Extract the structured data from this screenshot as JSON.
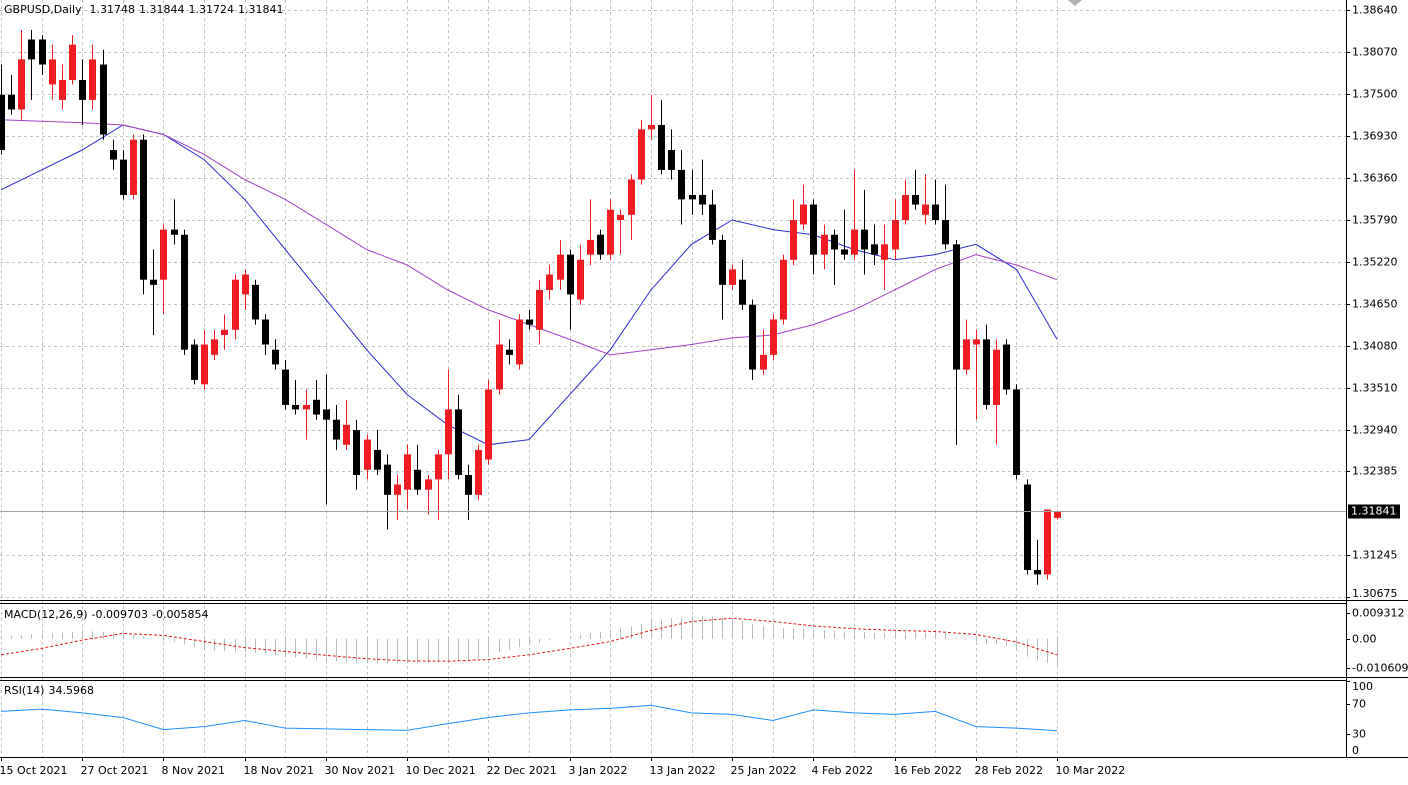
{
  "chart_data": [
    {
      "type": "candlestick",
      "header": "GBPUSD,Daily",
      "categories": [
        "15 Oct 2021",
        null,
        null,
        null,
        null,
        null,
        null,
        null,
        "27 Oct 2021",
        null,
        null,
        null,
        null,
        null,
        null,
        null,
        "8 Nov 2021",
        null,
        null,
        null,
        null,
        null,
        null,
        null,
        "18 Nov 2021",
        null,
        null,
        null,
        null,
        null,
        null,
        null,
        "30 Nov 2021",
        null,
        null,
        null,
        null,
        null,
        null,
        null,
        "10 Dec 2021",
        null,
        null,
        null,
        null,
        null,
        null,
        null,
        "22 Dec 2021",
        null,
        null,
        null,
        null,
        null,
        null,
        null,
        "3 Jan 2022",
        null,
        null,
        null,
        null,
        null,
        null,
        null,
        "13 Jan 2022",
        null,
        null,
        null,
        null,
        null,
        null,
        null,
        "25 Jan 2022",
        null,
        null,
        null,
        null,
        null,
        null,
        null,
        "4 Feb 2022",
        null,
        null,
        null,
        null,
        null,
        null,
        null,
        "16 Feb 2022",
        null,
        null,
        null,
        null,
        null,
        null,
        null,
        "28 Feb 2022",
        null,
        null,
        null,
        null,
        null,
        null,
        null,
        "10 Mar 2022"
      ],
      "open": [
        1.3749,
        1.3749,
        1.3729,
        1.3824,
        1.3824,
        1.3763,
        1.3742,
        1.3769,
        1.3769,
        1.3742,
        1.379,
        1.3674,
        1.3661,
        1.3613,
        1.3688,
        1.3498,
        1.3498,
        1.3566,
        1.3559,
        1.341,
        1.3356,
        1.3396,
        1.3423,
        1.343,
        1.3478,
        1.3491,
        1.3444,
        1.3403,
        1.3376,
        1.3328,
        1.3322,
        1.3335,
        1.3322,
        1.3308,
        1.3274,
        1.3294,
        1.324,
        1.3267,
        1.3247,
        1.3206,
        1.3213,
        1.324,
        1.3213,
        1.3227,
        1.3261,
        1.3322,
        1.3233,
        1.3206,
        1.3254,
        1.3349,
        1.3403,
        1.3383,
        1.3444,
        1.343,
        1.3484,
        1.3498,
        1.3532,
        1.3471,
        1.3532,
        1.3559,
        1.3532,
        1.3579,
        1.3586,
        1.3634,
        1.3702,
        1.3708,
        1.3674,
        1.3647,
        1.3613,
        1.3613,
        1.36,
        1.3552,
        1.3491,
        1.3498,
        1.3464,
        1.3376,
        1.3396,
        1.3444,
        1.3525,
        1.3573,
        1.36,
        1.3532,
        1.3559,
        1.3539,
        1.3532,
        1.3566,
        1.3546,
        1.3525,
        1.3539,
        1.3579,
        1.3613,
        1.3586,
        1.36,
        1.3579,
        1.3546,
        1.3376,
        1.341,
        1.3417,
        1.3328,
        1.341,
        1.3349,
        1.322,
        1.3104,
        1.3098,
        1.31748
      ],
      "high": [
        1.379,
        1.3776,
        1.3837,
        1.3837,
        1.383,
        1.3817,
        1.379,
        1.383,
        1.3797,
        1.3817,
        1.381,
        1.3688,
        1.3674,
        1.3695,
        1.3695,
        1.3539,
        1.3573,
        1.3607,
        1.3566,
        1.3417,
        1.343,
        1.343,
        1.3451,
        1.3505,
        1.3512,
        1.3498,
        1.3451,
        1.3417,
        1.3389,
        1.3362,
        1.3349,
        1.3362,
        1.3369,
        1.3328,
        1.3335,
        1.3308,
        1.3288,
        1.3294,
        1.3261,
        1.3233,
        1.3274,
        1.3274,
        1.3233,
        1.3267,
        1.3376,
        1.3342,
        1.3247,
        1.3274,
        1.3362,
        1.3444,
        1.3417,
        1.3451,
        1.3457,
        1.3498,
        1.3518,
        1.3552,
        1.3539,
        1.3546,
        1.3607,
        1.3566,
        1.3607,
        1.3593,
        1.3641,
        1.3715,
        1.3749,
        1.3742,
        1.3702,
        1.3674,
        1.3647,
        1.3661,
        1.362,
        1.3559,
        1.3518,
        1.3525,
        1.3471,
        1.343,
        1.3451,
        1.3532,
        1.3607,
        1.3627,
        1.3607,
        1.3573,
        1.3566,
        1.3593,
        1.3647,
        1.362,
        1.3573,
        1.3573,
        1.3607,
        1.3634,
        1.3647,
        1.3641,
        1.3634,
        1.3627,
        1.3552,
        1.3444,
        1.343,
        1.3437,
        1.3417,
        1.3417,
        1.3356,
        1.3227,
        1.3145,
        1.3186,
        1.31844
      ],
      "low": [
        1.3668,
        1.3722,
        1.3715,
        1.3742,
        1.3776,
        1.3742,
        1.3729,
        1.3763,
        1.3708,
        1.3729,
        1.3688,
        1.3647,
        1.3607,
        1.3607,
        1.3478,
        1.3423,
        1.3451,
        1.3546,
        1.3396,
        1.3356,
        1.3349,
        1.3389,
        1.3403,
        1.3417,
        1.3457,
        1.3437,
        1.3396,
        1.3376,
        1.3322,
        1.3315,
        1.3281,
        1.3308,
        1.3193,
        1.3267,
        1.3267,
        1.3213,
        1.3227,
        1.3233,
        1.3159,
        1.3172,
        1.3186,
        1.3206,
        1.3179,
        1.3172,
        1.3227,
        1.3227,
        1.3172,
        1.3199,
        1.3247,
        1.3342,
        1.3383,
        1.3376,
        1.343,
        1.341,
        1.3471,
        1.3484,
        1.343,
        1.3464,
        1.3518,
        1.3525,
        1.3525,
        1.3532,
        1.3552,
        1.3627,
        1.3688,
        1.3641,
        1.3634,
        1.3573,
        1.3586,
        1.3586,
        1.3546,
        1.3444,
        1.3484,
        1.3457,
        1.3362,
        1.3369,
        1.3389,
        1.3437,
        1.3518,
        1.3566,
        1.3505,
        1.3512,
        1.3491,
        1.3525,
        1.3525,
        1.3505,
        1.3518,
        1.3484,
        1.3525,
        1.3573,
        1.3593,
        1.3573,
        1.3573,
        1.3539,
        1.3274,
        1.3369,
        1.3308,
        1.3322,
        1.3274,
        1.3342,
        1.3227,
        1.3098,
        1.3084,
        1.3091,
        1.31724
      ],
      "close": [
        1.3674,
        1.3729,
        1.3797,
        1.3797,
        1.379,
        1.3797,
        1.3769,
        1.3817,
        1.3742,
        1.3797,
        1.3695,
        1.3661,
        1.3613,
        1.3688,
        1.3498,
        1.3491,
        1.3566,
        1.3559,
        1.3403,
        1.3362,
        1.341,
        1.3417,
        1.343,
        1.3498,
        1.3505,
        1.3444,
        1.341,
        1.3383,
        1.3328,
        1.3322,
        1.3328,
        1.3315,
        1.3308,
        1.3281,
        1.3301,
        1.3233,
        1.3281,
        1.324,
        1.3206,
        1.322,
        1.3261,
        1.3213,
        1.3227,
        1.3261,
        1.3322,
        1.3233,
        1.3206,
        1.3267,
        1.3349,
        1.341,
        1.3396,
        1.3444,
        1.3437,
        1.3484,
        1.3505,
        1.3532,
        1.3478,
        1.3525,
        1.3552,
        1.3532,
        1.3593,
        1.3586,
        1.3634,
        1.3702,
        1.3708,
        1.3647,
        1.3647,
        1.3607,
        1.3607,
        1.36,
        1.3552,
        1.3491,
        1.3512,
        1.3464,
        1.3376,
        1.3396,
        1.3444,
        1.3525,
        1.3579,
        1.36,
        1.3532,
        1.3559,
        1.3539,
        1.3532,
        1.3566,
        1.3539,
        1.3532,
        1.3546,
        1.3579,
        1.3613,
        1.36,
        1.36,
        1.3579,
        1.3546,
        1.3376,
        1.3417,
        1.3417,
        1.3328,
        1.3403,
        1.3349,
        1.3233,
        1.3104,
        1.3098,
        1.3186,
        1.31841
      ],
      "up_color": "#f01c24",
      "down_color": "#000000",
      "lines": [
        {
          "color": "#2b2bd0",
          "x": [
            0,
            4,
            8,
            12,
            16,
            20,
            24,
            28,
            32,
            36,
            40,
            44,
            48,
            52,
            56,
            60,
            64,
            68,
            72,
            76,
            80,
            84,
            88,
            92,
            96,
            100,
            104
          ],
          "values": [
            1.362,
            1.3647,
            1.3674,
            1.3708,
            1.3695,
            1.3661,
            1.3607,
            1.3539,
            1.3471,
            1.3403,
            1.3342,
            1.3301,
            1.3274,
            1.3281,
            1.3342,
            1.3403,
            1.3484,
            1.3546,
            1.3579,
            1.3566,
            1.3559,
            1.3539,
            1.3525,
            1.3532,
            1.3546,
            1.3512,
            1.3417
          ]
        },
        {
          "color": "#a043c8",
          "x": [
            0,
            4,
            8,
            12,
            16,
            20,
            24,
            28,
            32,
            36,
            40,
            44,
            48,
            52,
            56,
            60,
            64,
            68,
            72,
            76,
            80,
            84,
            88,
            92,
            96,
            100,
            104
          ],
          "values": [
            1.3715,
            1.3713,
            1.3711,
            1.3708,
            1.3695,
            1.3668,
            1.3634,
            1.3607,
            1.3573,
            1.3539,
            1.3518,
            1.3484,
            1.3457,
            1.3437,
            1.3417,
            1.3396,
            1.3403,
            1.341,
            1.3419,
            1.3423,
            1.3437,
            1.3457,
            1.3484,
            1.3512,
            1.3532,
            1.3518,
            1.3498
          ]
        }
      ],
      "ylim": [
        1.30633,
        1.38776
      ],
      "yticks": [
        {
          "value": 1.3864,
          "label": "1.38640"
        },
        {
          "value": 1.3807,
          "label": "1.38070"
        },
        {
          "value": 1.375,
          "label": "1.37500"
        },
        {
          "value": 1.3693,
          "label": "1.36930"
        },
        {
          "value": 1.3636,
          "label": "1.36360"
        },
        {
          "value": 1.3579,
          "label": "1.35790"
        },
        {
          "value": 1.3522,
          "label": "1.35220"
        },
        {
          "value": 1.3465,
          "label": "1.34650"
        },
        {
          "value": 1.3408,
          "label": "1.34080"
        },
        {
          "value": 1.3351,
          "label": "1.33510"
        },
        {
          "value": 1.3294,
          "label": "1.32940"
        },
        {
          "value": 1.32385,
          "label": "1.32385"
        },
        {
          "value": 1.31245,
          "label": "1.31245"
        },
        {
          "value": 1.30675,
          "label": "1.30675"
        }
      ],
      "grid": true
    },
    {
      "type": "macd",
      "title": "MACD(12,26,9)",
      "histogram": {
        "color": "#b8b8b8",
        "values": [
          0.0008,
          0.001,
          0.0013,
          0.0016,
          0.0019,
          0.0021,
          0.0023,
          0.0025,
          0.0026,
          0.0027,
          0.0026,
          0.0023,
          0.0019,
          0.0016,
          0.0008,
          0.0,
          -0.0006,
          -0.0012,
          -0.0022,
          -0.0031,
          -0.0037,
          -0.0042,
          -0.0045,
          -0.0046,
          -0.0048,
          -0.0051,
          -0.0055,
          -0.0059,
          -0.0064,
          -0.0068,
          -0.0072,
          -0.0075,
          -0.0078,
          -0.0081,
          -0.0083,
          -0.0086,
          -0.0087,
          -0.0088,
          -0.009,
          -0.009,
          -0.0089,
          -0.0088,
          -0.0087,
          -0.0085,
          -0.0078,
          -0.0076,
          -0.0075,
          -0.007,
          -0.006,
          -0.0048,
          -0.004,
          -0.0031,
          -0.0024,
          -0.0015,
          -0.0007,
          0.0001,
          0.0006,
          0.0013,
          0.002,
          0.0025,
          0.0032,
          0.0037,
          0.0044,
          0.0055,
          0.0065,
          0.007,
          0.0075,
          0.0077,
          0.008,
          0.0081,
          0.008,
          0.0075,
          0.007,
          0.0064,
          0.0052,
          0.0045,
          0.004,
          0.0038,
          0.0036,
          0.0035,
          0.0032,
          0.003,
          0.0028,
          0.0026,
          0.0026,
          0.0024,
          0.0022,
          0.0022,
          0.0023,
          0.0025,
          0.0025,
          0.0025,
          0.0024,
          0.002,
          0.0004,
          -0.0004,
          -0.001,
          -0.0018,
          -0.002,
          -0.0027,
          -0.0042,
          -0.0065,
          -0.008,
          -0.0088,
          -0.009703
        ]
      },
      "signal": {
        "color": "#e01a1a",
        "x": [
          0,
          4,
          8,
          12,
          16,
          20,
          24,
          28,
          32,
          36,
          40,
          44,
          48,
          52,
          56,
          60,
          64,
          68,
          72,
          76,
          80,
          84,
          88,
          92,
          96,
          100,
          104
        ],
        "values": [
          -0.0058,
          -0.0035,
          -0.0005,
          0.0019,
          0.0012,
          -0.001,
          -0.0032,
          -0.0046,
          -0.006,
          -0.0072,
          -0.008,
          -0.0081,
          -0.0075,
          -0.0058,
          -0.0035,
          -0.001,
          0.003,
          0.0062,
          0.0074,
          0.0062,
          0.0046,
          0.0036,
          0.003,
          0.0026,
          0.0015,
          -0.0012,
          -0.005854
        ]
      },
      "ylim": [
        -0.01381,
        0.01251
      ],
      "yticks": [
        0.009312,
        {
          "value": 0,
          "label": "0.00"
        },
        -0.010609
      ]
    },
    {
      "type": "rsi",
      "title": "RSI(14)",
      "color": "#1e8fff",
      "x": [
        0,
        4,
        8,
        12,
        16,
        20,
        24,
        28,
        32,
        36,
        40,
        44,
        48,
        52,
        56,
        60,
        64,
        68,
        72,
        76,
        80,
        84,
        88,
        92,
        96,
        100,
        104
      ],
      "values": [
        60,
        63,
        58,
        52,
        36,
        40,
        48,
        38,
        37,
        36,
        35,
        44,
        52,
        58,
        62,
        64,
        68,
        58,
        56,
        48,
        62,
        58,
        56,
        60,
        40,
        38,
        34.5968
      ],
      "ylim": [
        0,
        100
      ],
      "yticks": [
        100,
        70,
        30,
        0
      ]
    }
  ]
}
